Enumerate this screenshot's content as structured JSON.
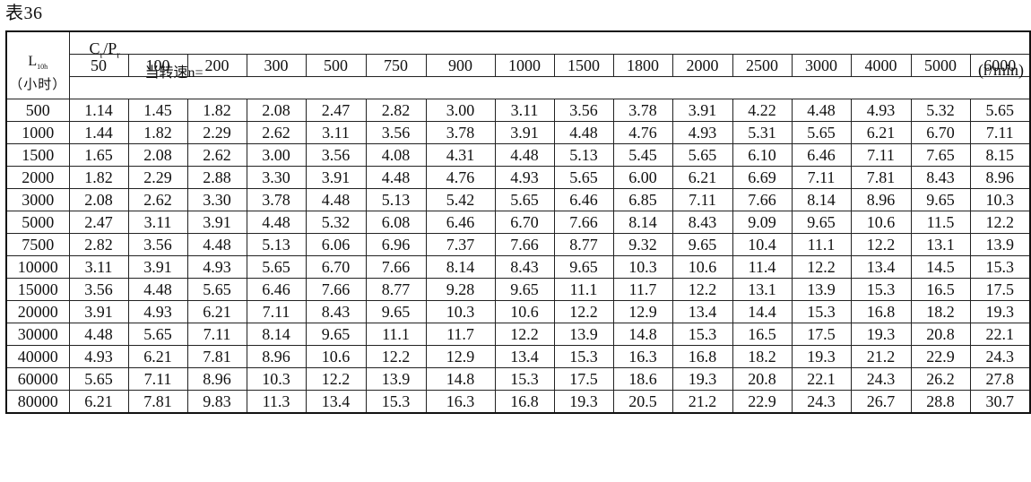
{
  "caption": "表36",
  "header": {
    "ratio_label": "C",
    "ratio_r1": "r",
    "ratio_slash": "/P",
    "ratio_r2": "r",
    "tick_mark": "ˎ",
    "speed_label": "当转速n=",
    "unit": "(r/min)",
    "life_symbol": "L",
    "life_sub": "10h",
    "life_unit": "（小时）"
  },
  "speeds": [
    "50",
    "100",
    "200",
    "300",
    "500",
    "750",
    "900",
    "1000",
    "1500",
    "1800",
    "2000",
    "2500",
    "3000",
    "4000",
    "5000",
    "6000"
  ],
  "rows": [
    {
      "life": "500",
      "values": [
        "1.14",
        "1.45",
        "1.82",
        "2.08",
        "2.47",
        "2.82",
        "3.00",
        "3.11",
        "3.56",
        "3.78",
        "3.91",
        "4.22",
        "4.48",
        "4.93",
        "5.32",
        "5.65"
      ]
    },
    {
      "life": "1000",
      "values": [
        "1.44",
        "1.82",
        "2.29",
        "2.62",
        "3.11",
        "3.56",
        "3.78",
        "3.91",
        "4.48",
        "4.76",
        "4.93",
        "5.31",
        "5.65",
        "6.21",
        "6.70",
        "7.11"
      ]
    },
    {
      "life": "1500",
      "values": [
        "1.65",
        "2.08",
        "2.62",
        "3.00",
        "3.56",
        "4.08",
        "4.31",
        "4.48",
        "5.13",
        "5.45",
        "5.65",
        "6.10",
        "6.46",
        "7.11",
        "7.65",
        "8.15"
      ]
    },
    {
      "life": "2000",
      "values": [
        "1.82",
        "2.29",
        "2.88",
        "3.30",
        "3.91",
        "4.48",
        "4.76",
        "4.93",
        "5.65",
        "6.00",
        "6.21",
        "6.69",
        "7.11",
        "7.81",
        "8.43",
        "8.96"
      ]
    },
    {
      "life": "3000",
      "values": [
        "2.08",
        "2.62",
        "3.30",
        "3.78",
        "4.48",
        "5.13",
        "5.42",
        "5.65",
        "6.46",
        "6.85",
        "7.11",
        "7.66",
        "8.14",
        "8.96",
        "9.65",
        "10.3"
      ]
    },
    {
      "life": "5000",
      "values": [
        "2.47",
        "3.11",
        "3.91",
        "4.48",
        "5.32",
        "6.08",
        "6.46",
        "6.70",
        "7.66",
        "8.14",
        "8.43",
        "9.09",
        "9.65",
        "10.6",
        "11.5",
        "12.2"
      ]
    },
    {
      "life": "7500",
      "values": [
        "2.82",
        "3.56",
        "4.48",
        "5.13",
        "6.06",
        "6.96",
        "7.37",
        "7.66",
        "8.77",
        "9.32",
        "9.65",
        "10.4",
        "11.1",
        "12.2",
        "13.1",
        "13.9"
      ]
    },
    {
      "life": "10000",
      "values": [
        "3.11",
        "3.91",
        "4.93",
        "5.65",
        "6.70",
        "7.66",
        "8.14",
        "8.43",
        "9.65",
        "10.3",
        "10.6",
        "11.4",
        "12.2",
        "13.4",
        "14.5",
        "15.3"
      ]
    },
    {
      "life": "15000",
      "values": [
        "3.56",
        "4.48",
        "5.65",
        "6.46",
        "7.66",
        "8.77",
        "9.28",
        "9.65",
        "11.1",
        "11.7",
        "12.2",
        "13.1",
        "13.9",
        "15.3",
        "16.5",
        "17.5"
      ]
    },
    {
      "life": "20000",
      "values": [
        "3.91",
        "4.93",
        "6.21",
        "7.11",
        "8.43",
        "9.65",
        "10.3",
        "10.6",
        "12.2",
        "12.9",
        "13.4",
        "14.4",
        "15.3",
        "16.8",
        "18.2",
        "19.3"
      ]
    },
    {
      "life": "30000",
      "values": [
        "4.48",
        "5.65",
        "7.11",
        "8.14",
        "9.65",
        "11.1",
        "11.7",
        "12.2",
        "13.9",
        "14.8",
        "15.3",
        "16.5",
        "17.5",
        "19.3",
        "20.8",
        "22.1"
      ]
    },
    {
      "life": "40000",
      "values": [
        "4.93",
        "6.21",
        "7.81",
        "8.96",
        "10.6",
        "12.2",
        "12.9",
        "13.4",
        "15.3",
        "16.3",
        "16.8",
        "18.2",
        "19.3",
        "21.2",
        "22.9",
        "24.3"
      ]
    },
    {
      "life": "60000",
      "values": [
        "5.65",
        "7.11",
        "8.96",
        "10.3",
        "12.2",
        "13.9",
        "14.8",
        "15.3",
        "17.5",
        "18.6",
        "19.3",
        "20.8",
        "22.1",
        "24.3",
        "26.2",
        "27.8"
      ]
    },
    {
      "life": "80000",
      "values": [
        "6.21",
        "7.81",
        "9.83",
        "11.3",
        "13.4",
        "15.3",
        "16.3",
        "16.8",
        "19.3",
        "20.5",
        "21.2",
        "22.9",
        "24.3",
        "26.7",
        "28.8",
        "30.7"
      ]
    }
  ]
}
